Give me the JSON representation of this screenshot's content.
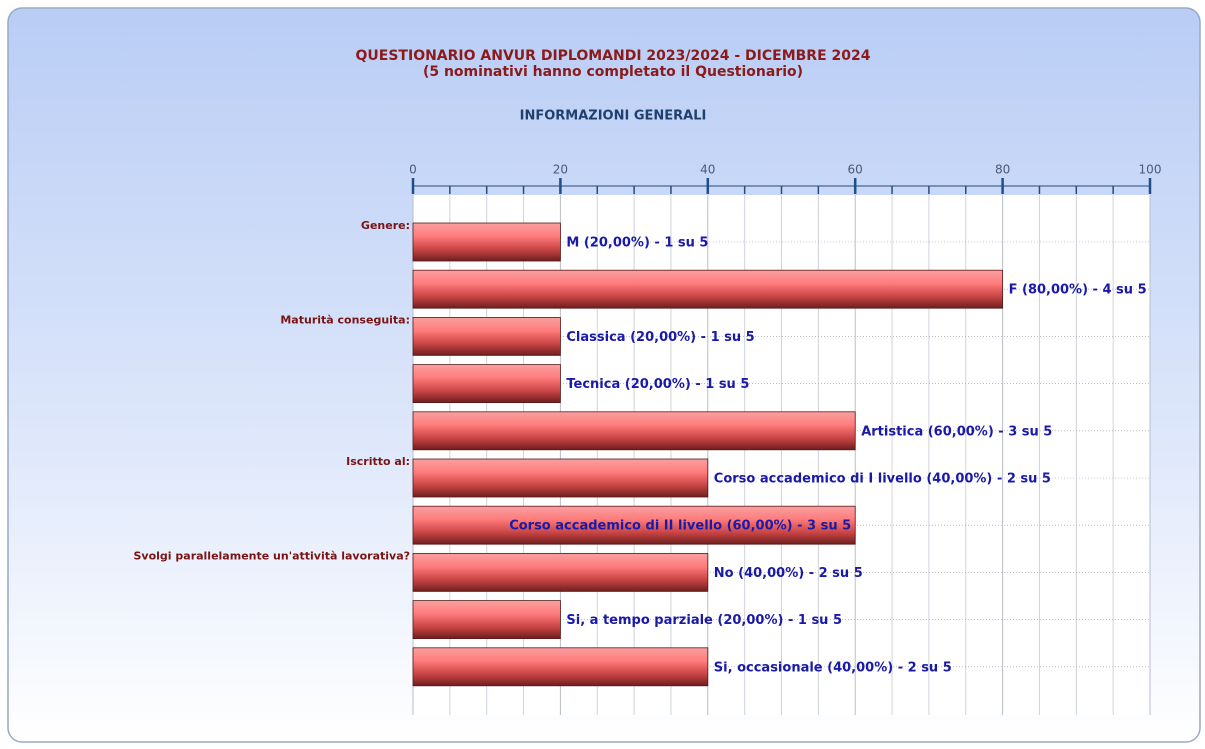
{
  "chart_data": {
    "type": "bar",
    "orientation": "horizontal",
    "title": "QUESTIONARIO ANVUR DIPLOMANDI 2023/2024 - DICEMBRE 2024",
    "subtitle": "(5 nominativi hanno completato il Questionario)",
    "section": "INFORMAZIONI GENERALI",
    "categories": [
      "Genere:",
      null,
      "Maturità conseguita:",
      null,
      null,
      "Iscritto al:",
      null,
      "Svolgi parallelamente un'attività lavorativa?",
      null,
      null
    ],
    "values": [
      20,
      80,
      20,
      20,
      60,
      40,
      60,
      40,
      20,
      40
    ],
    "value_labels": [
      "M (20,00%) - 1 su 5",
      "F (80,00%) - 4 su 5",
      "Classica (20,00%) - 1 su 5",
      "Tecnica (20,00%) - 1 su 5",
      "Artistica (60,00%) - 3 su 5",
      "Corso accademico di I livello (40,00%) - 2 su 5",
      "Corso accademico di II livello (60,00%) - 3 su 5",
      "No (40,00%) - 2 su 5",
      "Si, a tempo parziale (20,00%) - 1 su 5",
      "Si, occasionale (40,00%) - 2 su 5"
    ],
    "color": "#e85a5a",
    "xlim": [
      0,
      100
    ],
    "xticks": [
      0,
      20,
      40,
      60,
      80,
      100
    ],
    "xminor_ticks": [
      5,
      10,
      15,
      25,
      30,
      35,
      45,
      50,
      55,
      65,
      70,
      75,
      85,
      90,
      95
    ],
    "grid": true
  }
}
